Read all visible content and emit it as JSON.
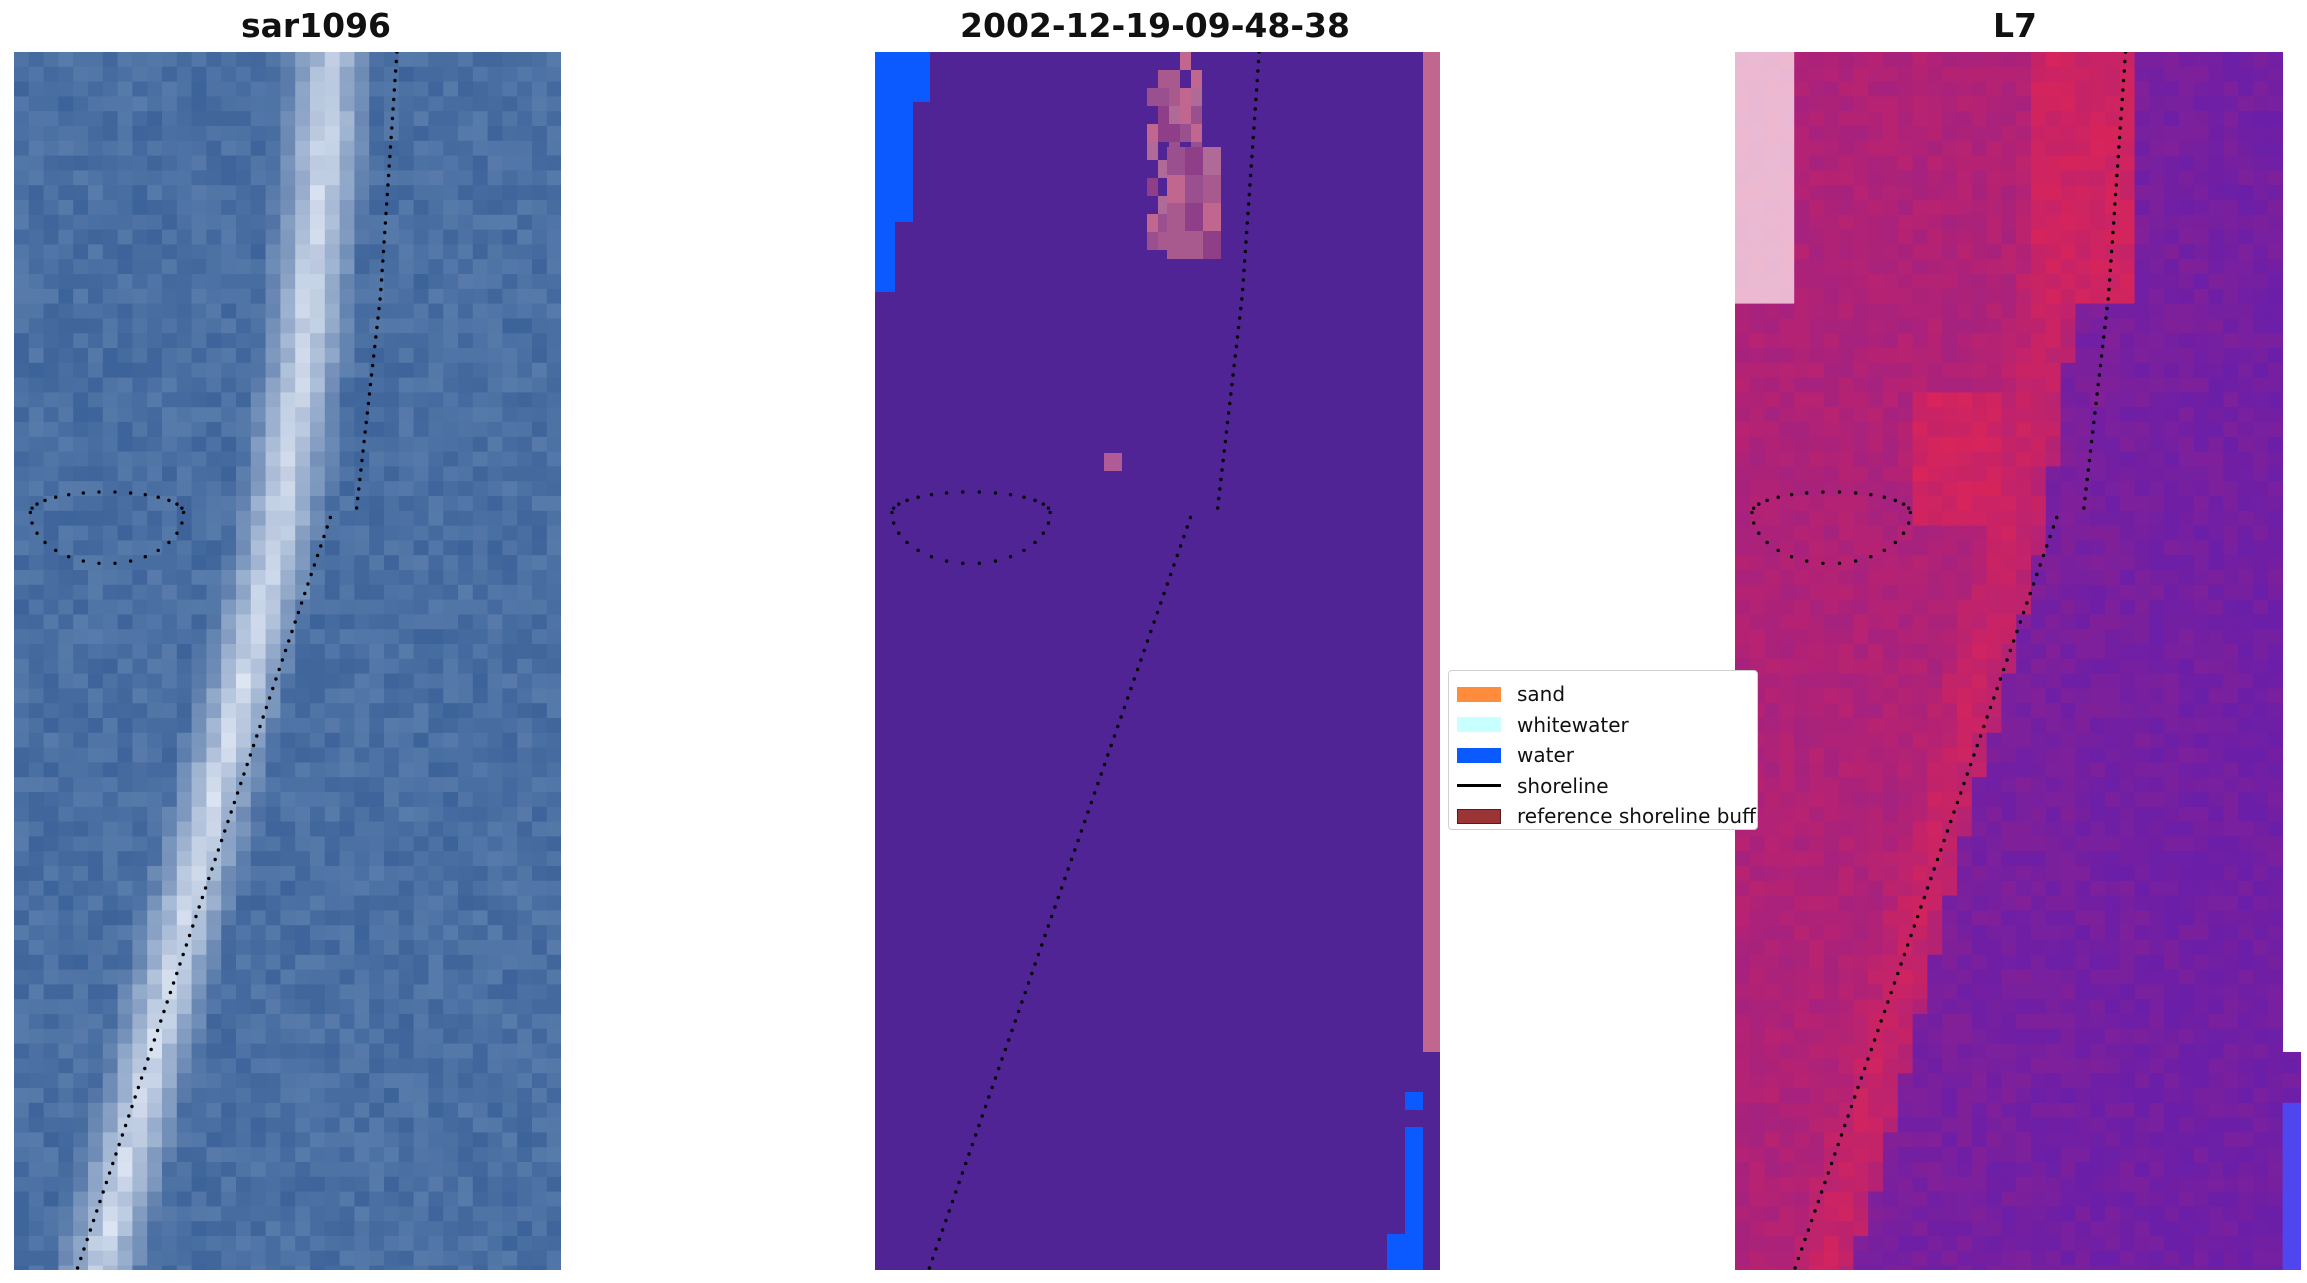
{
  "panels": [
    {
      "title": "sar1096"
    },
    {
      "title": "2002-12-19-09-48-38"
    },
    {
      "title": "L7"
    }
  ],
  "legend": {
    "items": [
      {
        "label": "sand",
        "kind": "patch",
        "color": "#ff8c3c",
        "border": "#ff8c3c"
      },
      {
        "label": "whitewater",
        "kind": "patch",
        "color": "#c8ffff",
        "border": "#c8ffff"
      },
      {
        "label": "water",
        "kind": "patch",
        "color": "#0a5aff",
        "border": "#0a5aff"
      },
      {
        "label": "shoreline",
        "kind": "line",
        "color": "#000000"
      },
      {
        "label": "reference shoreline buffer",
        "kind": "patch",
        "color": "#9b3434",
        "border": "#5a1a1a"
      }
    ]
  },
  "colors": {
    "rgb_base": "#4a6fa2",
    "class_background": "#512496",
    "class_water": "#0a5aff",
    "class_edge": "#c0668f",
    "ndvi_low": "#6b1fa8",
    "ndvi_high": "#d8245a",
    "shoreline_dots": "#000000"
  }
}
